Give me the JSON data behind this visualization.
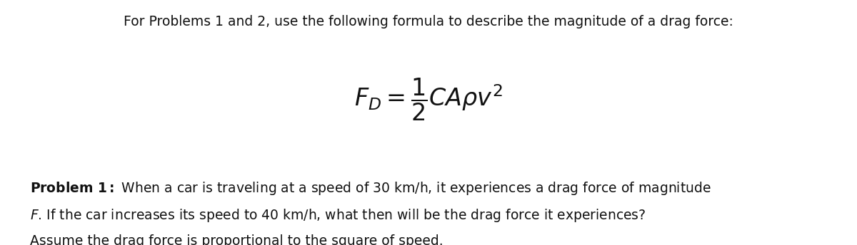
{
  "background_color": "#ffffff",
  "header_text": "For Problems 1 and 2, use the following formula to describe the magnitude of a drag force:",
  "header_fontsize": 13.5,
  "formula_fontsize": 24,
  "problem_fontsize": 13.5,
  "text_color": "#111111",
  "line1_bold": "Problem 1:",
  "line1_rest": " When a car is traveling at a speed of 30 km/h, it experiences a drag force of magnitude",
  "line2": "F. If the car increases its speed to 40 km/h, what then will be the drag force it experiences?",
  "line3": "Assume the drag force is proportional to the square of speed."
}
